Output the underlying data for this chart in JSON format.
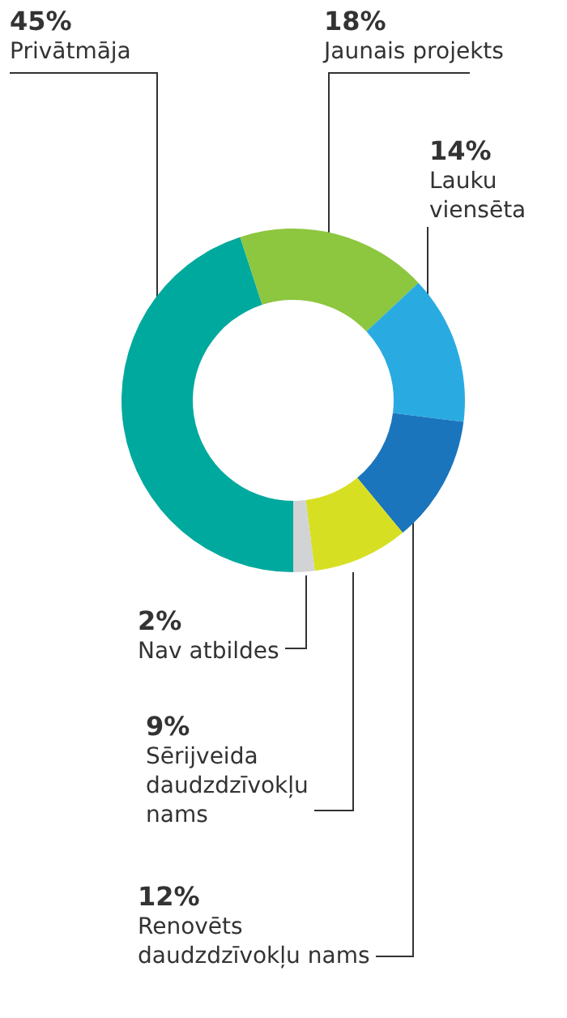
{
  "chart_data": {
    "type": "donut",
    "categories": [
      "Privātmāja",
      "Jaunais projekts",
      "Lauku viensēta",
      "Renovēts daudzdzīvokļu nams",
      "Sērijveida daudzdzīvokļu nams",
      "Nav atbildes"
    ],
    "values": [
      45,
      18,
      14,
      12,
      9,
      2
    ],
    "value_labels": [
      "45%",
      "18%",
      "14%",
      "12%",
      "9%",
      "2%"
    ],
    "colors": [
      "#00a99d",
      "#8dc63f",
      "#29abe2",
      "#1b75bc",
      "#d7df23",
      "#d1d3d4"
    ],
    "legend": false
  }
}
